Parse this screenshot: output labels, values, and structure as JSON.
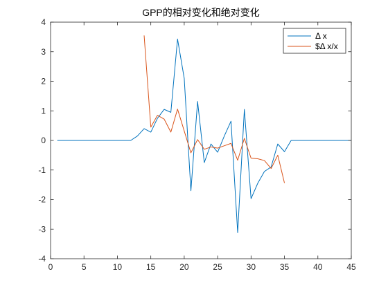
{
  "chart_data": {
    "type": "line",
    "title": "GPP的相对变化和绝对变化",
    "xlabel": "",
    "ylabel": "",
    "xlim": [
      0,
      45
    ],
    "ylim": [
      -4,
      4
    ],
    "x_ticks": [
      0,
      5,
      10,
      15,
      20,
      25,
      30,
      35,
      40,
      45
    ],
    "y_ticks": [
      -4,
      -3,
      -2,
      -1,
      0,
      1,
      2,
      3,
      4
    ],
    "grid": false,
    "legend_position": "top-right",
    "series": [
      {
        "name": "Δ x",
        "color": "#0072BD",
        "x": [
          1,
          2,
          3,
          4,
          5,
          6,
          7,
          8,
          9,
          10,
          11,
          12,
          13,
          14,
          15,
          16,
          17,
          18,
          19,
          20,
          21,
          22,
          23,
          24,
          25,
          26,
          27,
          28,
          29,
          30,
          31,
          32,
          33,
          34,
          35,
          36,
          37,
          38,
          39,
          40,
          41,
          42,
          43,
          44,
          45
        ],
        "y": [
          0,
          0,
          0,
          0,
          0,
          0,
          0,
          0,
          0,
          0,
          0,
          0,
          0.15,
          0.4,
          0.28,
          0.75,
          1.05,
          0.95,
          3.43,
          2.1,
          -1.7,
          1.32,
          -0.75,
          -0.12,
          -0.4,
          0.15,
          0.65,
          -3.12,
          1.05,
          -1.97,
          -1.45,
          -1.05,
          -0.9,
          -0.12,
          -0.38,
          0,
          0,
          0,
          0,
          0,
          0,
          0,
          0,
          0,
          0
        ]
      },
      {
        "name": "$Δ x/x",
        "color": "#D95319",
        "x": [
          14,
          15,
          16,
          17,
          18,
          19,
          20,
          21,
          22,
          23,
          24,
          25,
          26,
          27,
          28,
          29,
          30,
          31,
          32,
          33,
          34,
          35
        ],
        "y": [
          3.55,
          0.45,
          0.85,
          0.72,
          0.28,
          1.06,
          0.32,
          -0.42,
          0.03,
          -0.3,
          -0.22,
          -0.26,
          -0.18,
          -0.1,
          -0.67,
          0.07,
          -0.6,
          -0.62,
          -0.68,
          -0.95,
          -0.5,
          -1.44
        ]
      }
    ]
  }
}
